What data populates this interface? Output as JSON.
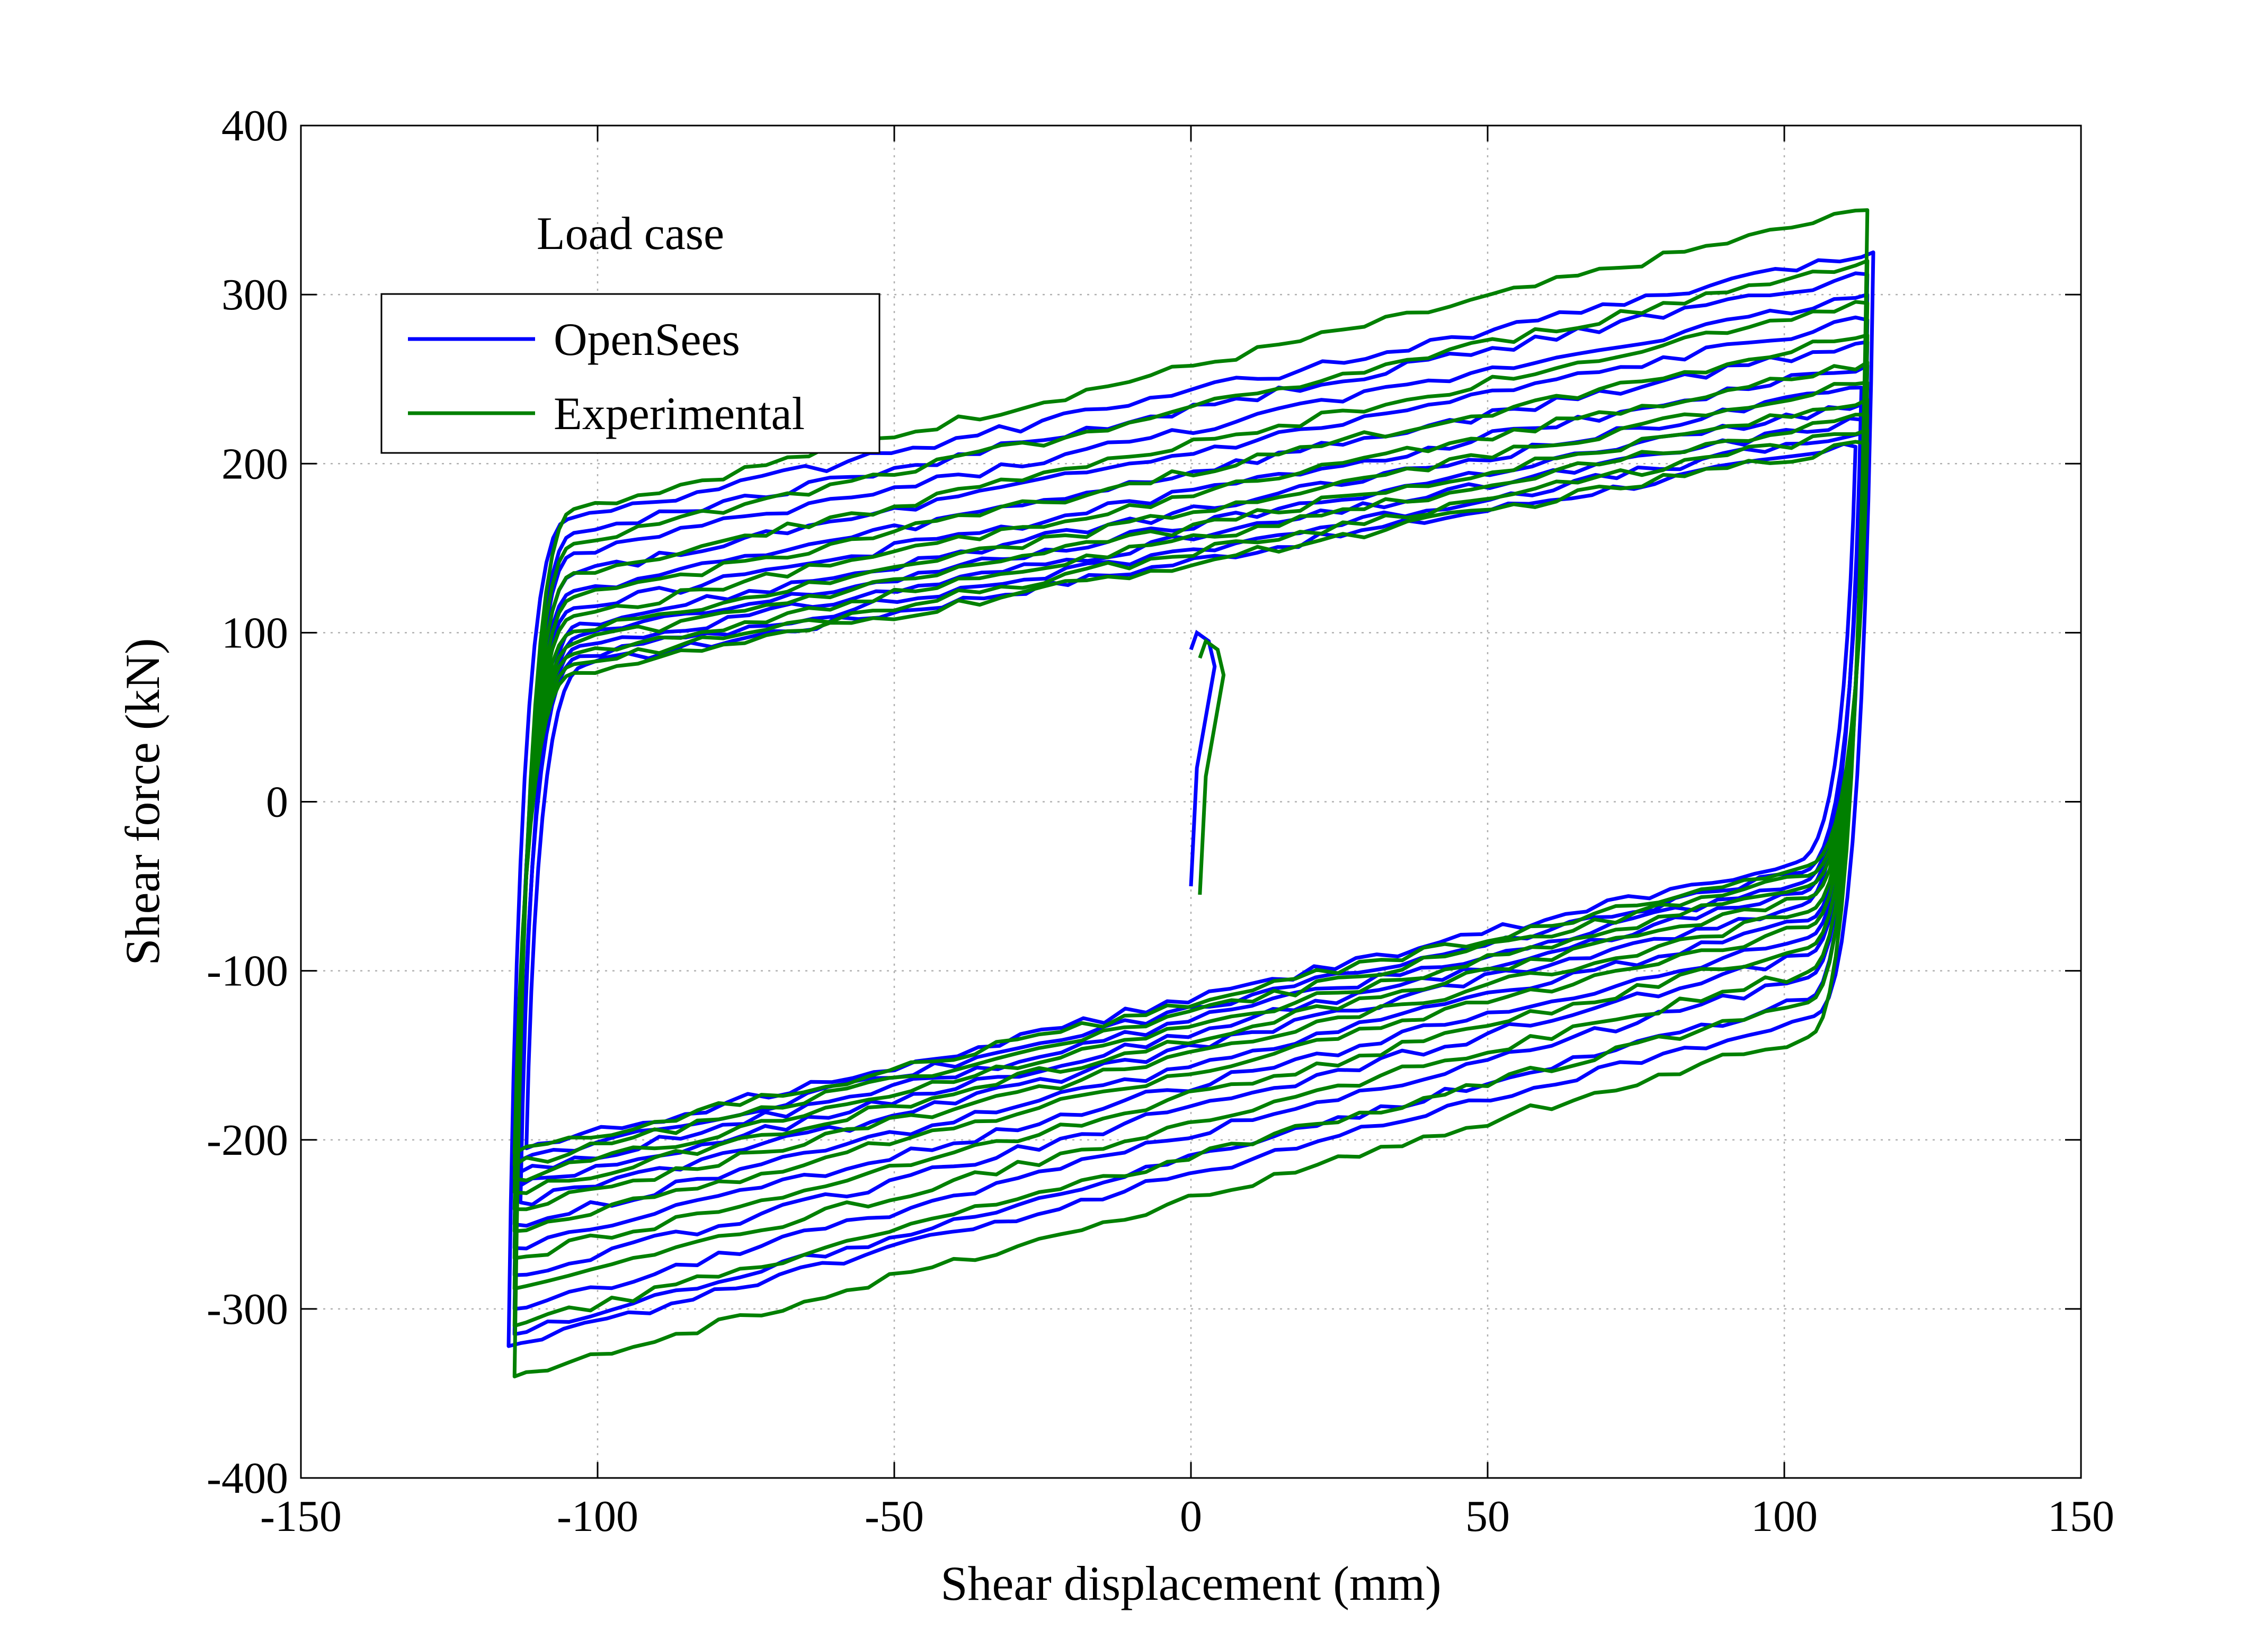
{
  "chart_data": {
    "type": "line",
    "title": "",
    "xlabel": "Shear displacement (mm)",
    "ylabel": "Shear force (kN)",
    "xlim": [
      -150,
      150
    ],
    "ylim": [
      -400,
      400
    ],
    "xticks": [
      -150,
      -100,
      -50,
      0,
      50,
      100,
      150
    ],
    "yticks": [
      -400,
      -300,
      -200,
      -100,
      0,
      100,
      200,
      300,
      400
    ],
    "xtick_labels": [
      "-150",
      "-100",
      "-50",
      "0",
      "50",
      "100",
      "150"
    ],
    "ytick_labels": [
      "-400",
      "-300",
      "-200",
      "-100",
      "0",
      "100",
      "200",
      "300",
      "400"
    ],
    "grid": true,
    "legend": {
      "title": "Load case",
      "placement": "top-left",
      "entries": [
        "OpenSees",
        "Experimental"
      ]
    },
    "initial_segment": {
      "x": [
        0,
        1,
        3,
        4,
        3,
        1,
        0
      ],
      "y": [
        -50,
        20,
        60,
        80,
        95,
        100,
        90
      ]
    },
    "series": [
      {
        "name": "OpenSees",
        "color": "#0000ff",
        "cycles": [
          {
            "amp_x": 112,
            "top_at_neg": 75,
            "top_at_pos": 210,
            "bot_at_pos": -28,
            "bot_at_neg": -205
          },
          {
            "amp_x": 113,
            "top_at_neg": 80,
            "top_at_pos": 218,
            "bot_at_pos": -34,
            "bot_at_neg": -212
          },
          {
            "amp_x": 113,
            "top_at_neg": 86,
            "top_at_pos": 226,
            "bot_at_pos": -40,
            "bot_at_neg": -219
          },
          {
            "amp_x": 113,
            "top_at_neg": 92,
            "top_at_pos": 235,
            "bot_at_pos": -46,
            "bot_at_neg": -227
          },
          {
            "amp_x": 113,
            "top_at_neg": 99,
            "top_at_pos": 245,
            "bot_at_pos": -53,
            "bot_at_neg": -237
          },
          {
            "amp_x": 114,
            "top_at_neg": 108,
            "top_at_pos": 258,
            "bot_at_pos": -62,
            "bot_at_neg": -250
          },
          {
            "amp_x": 114,
            "top_at_neg": 118,
            "top_at_pos": 272,
            "bot_at_pos": -72,
            "bot_at_neg": -264
          },
          {
            "amp_x": 114,
            "top_at_neg": 128,
            "top_at_pos": 285,
            "bot_at_pos": -82,
            "bot_at_neg": -280
          },
          {
            "amp_x": 114,
            "top_at_neg": 140,
            "top_at_pos": 300,
            "bot_at_pos": -95,
            "bot_at_neg": -300
          },
          {
            "amp_x": 114,
            "top_at_neg": 152,
            "top_at_pos": 312,
            "bot_at_pos": -108,
            "bot_at_neg": -315
          },
          {
            "amp_x": 115,
            "top_at_neg": 160,
            "top_at_pos": 325,
            "bot_at_pos": -118,
            "bot_at_neg": -322
          }
        ]
      },
      {
        "name": "Experimental",
        "color": "#008000",
        "cycles": [
          {
            "amp_x": 114,
            "top_at_neg": 70,
            "top_at_pos": 212,
            "bot_at_pos": -30,
            "bot_at_neg": -208
          },
          {
            "amp_x": 114,
            "top_at_neg": 75,
            "top_at_pos": 220,
            "bot_at_pos": -36,
            "bot_at_neg": -215
          },
          {
            "amp_x": 114,
            "top_at_neg": 81,
            "top_at_pos": 229,
            "bot_at_pos": -42,
            "bot_at_neg": -223
          },
          {
            "amp_x": 114,
            "top_at_neg": 87,
            "top_at_pos": 238,
            "bot_at_pos": -49,
            "bot_at_neg": -231
          },
          {
            "amp_x": 114,
            "top_at_neg": 94,
            "top_at_pos": 248,
            "bot_at_pos": -57,
            "bot_at_neg": -241
          },
          {
            "amp_x": 114,
            "top_at_neg": 103,
            "top_at_pos": 260,
            "bot_at_pos": -66,
            "bot_at_neg": -254
          },
          {
            "amp_x": 114,
            "top_at_neg": 114,
            "top_at_pos": 276,
            "bot_at_pos": -78,
            "bot_at_neg": -270
          },
          {
            "amp_x": 114,
            "top_at_neg": 128,
            "top_at_pos": 295,
            "bot_at_pos": -92,
            "bot_at_neg": -288
          },
          {
            "amp_x": 114,
            "top_at_neg": 145,
            "top_at_pos": 320,
            "bot_at_pos": -110,
            "bot_at_neg": -310
          },
          {
            "amp_x": 114,
            "top_at_neg": 165,
            "top_at_pos": 350,
            "bot_at_pos": -130,
            "bot_at_neg": -340
          }
        ]
      }
    ]
  }
}
